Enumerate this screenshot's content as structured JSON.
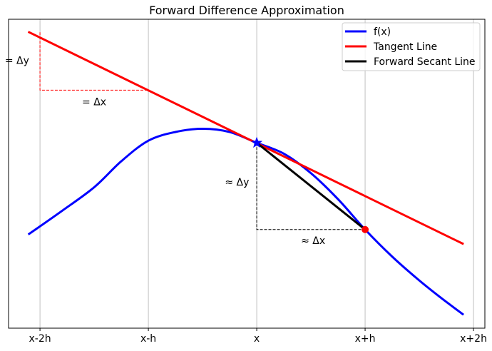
{
  "chart_data": {
    "type": "line",
    "title": "Forward Difference Approximation",
    "xlabel": "",
    "ylabel": "",
    "xlim": [
      -2.29,
      2.105
    ],
    "ylim": [
      -1.71,
      1.14
    ],
    "grid": "vertical",
    "x_ticks": [
      {
        "value": -2,
        "label": "x-2h"
      },
      {
        "value": -1,
        "label": "x-h"
      },
      {
        "value": 0,
        "label": "x"
      },
      {
        "value": 1,
        "label": "x+h"
      },
      {
        "value": 2,
        "label": "x+2h"
      }
    ],
    "legend_placement": "top-right",
    "series": [
      {
        "name": "f(x)",
        "color": "#0000ff",
        "x": [
          -2.1,
          -1.8,
          -1.5,
          -1.25,
          -1.0,
          -0.75,
          -0.5,
          -0.25,
          0,
          0.25,
          0.5,
          0.75,
          1.0,
          1.25,
          1.5,
          1.7,
          1.9
        ],
        "y": [
          -0.84,
          -0.63,
          -0.41,
          -0.17,
          0.02,
          0.1,
          0.13,
          0.1,
          0.0,
          -0.1,
          -0.28,
          -0.52,
          -0.8,
          -1.05,
          -1.27,
          -1.43,
          -1.58
        ]
      },
      {
        "name": "Tangent Line",
        "color": "#ff0000",
        "x": [
          -2.1,
          1.9
        ],
        "y": [
          1.02,
          -0.93
        ]
      },
      {
        "name": "Forward Secant Line",
        "color": "#000000",
        "x": [
          0,
          1
        ],
        "y": [
          0,
          -0.8
        ]
      }
    ],
    "markers": [
      {
        "name": "point-x",
        "shape": "star",
        "color": "#0000ff",
        "x": 0,
        "y": 0
      },
      {
        "name": "point-x-plus-h",
        "shape": "circle",
        "color": "#ff0000",
        "x": 1,
        "y": -0.8
      }
    ],
    "annotations": [
      {
        "text": "= Δy",
        "x": -2.1,
        "y": 0.76,
        "anchor": "end"
      },
      {
        "text": "= Δx",
        "x": -1.5,
        "y": 0.38,
        "anchor": "middle"
      },
      {
        "text": "≈ Δy",
        "x": -0.07,
        "y": -0.36,
        "anchor": "end"
      },
      {
        "text": "≈ Δx",
        "x": 0.52,
        "y": -0.9,
        "anchor": "middle"
      }
    ],
    "guides": [
      {
        "color": "#ff0000",
        "points": [
          [
            -2,
            1.02
          ],
          [
            -2,
            0.486
          ],
          [
            -1,
            0.486
          ]
        ]
      },
      {
        "color": "#000000",
        "points": [
          [
            0,
            0
          ],
          [
            0,
            -0.8
          ],
          [
            1,
            -0.8
          ]
        ]
      }
    ]
  }
}
